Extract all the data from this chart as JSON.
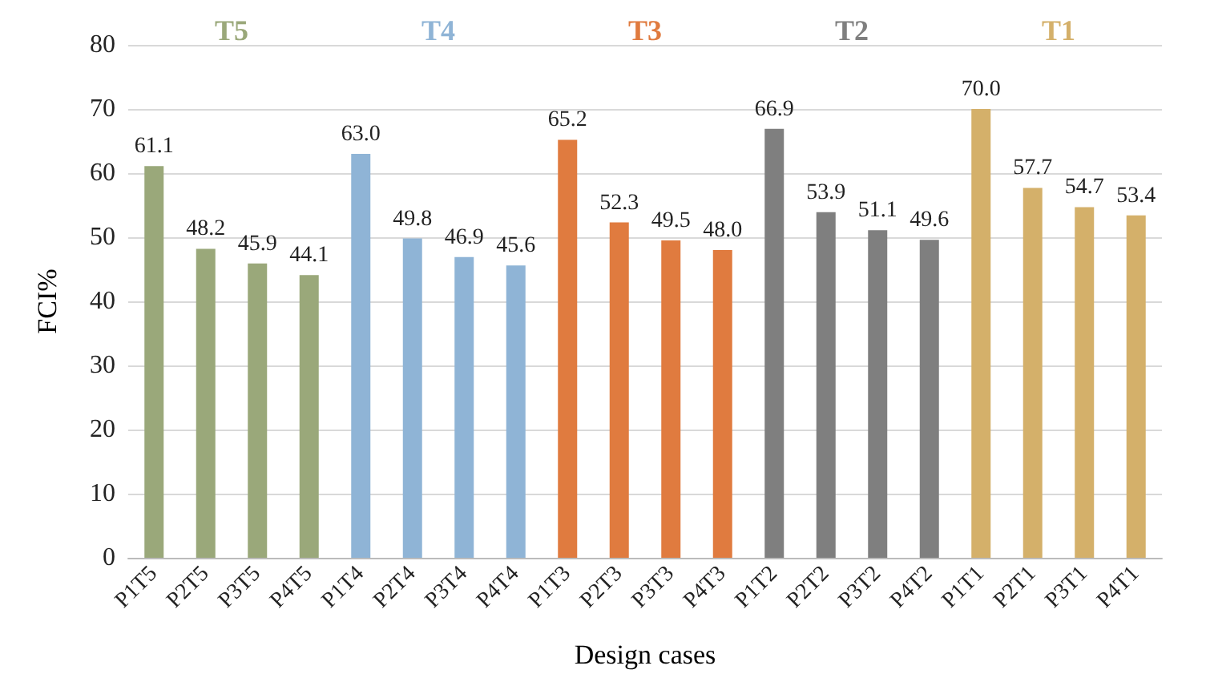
{
  "chart_data": {
    "type": "bar",
    "categories": [
      "P1T5",
      "P2T5",
      "P3T5",
      "P4T5",
      "P1T4",
      "P2T4",
      "P3T4",
      "P4T4",
      "P1T3",
      "P2T3",
      "P3T3",
      "P4T3",
      "P1T2",
      "P2T2",
      "P3T2",
      "P4T2",
      "P1T1",
      "P2T1",
      "P3T1",
      "P4T1"
    ],
    "values": [
      61.1,
      48.2,
      45.9,
      44.1,
      63.0,
      49.8,
      46.9,
      45.6,
      65.2,
      52.3,
      49.5,
      48.0,
      66.9,
      53.9,
      51.1,
      49.6,
      70.0,
      57.7,
      54.7,
      53.4
    ],
    "colors": [
      "#9aa87a",
      "#9aa87a",
      "#9aa87a",
      "#9aa87a",
      "#8fb4d6",
      "#8fb4d6",
      "#8fb4d6",
      "#8fb4d6",
      "#e07b3f",
      "#e07b3f",
      "#e07b3f",
      "#e07b3f",
      "#7f7f7f",
      "#7f7f7f",
      "#7f7f7f",
      "#7f7f7f",
      "#d4b06a",
      "#d4b06a",
      "#d4b06a",
      "#d4b06a"
    ],
    "value_labels": [
      "61.1",
      "48.2",
      "45.9",
      "44.1",
      "63.0",
      "49.8",
      "46.9",
      "45.6",
      "65.2",
      "52.3",
      "49.5",
      "48.0",
      "66.9",
      "53.9",
      "51.1",
      "49.6",
      "70.0",
      "57.7",
      "54.7",
      "53.4"
    ],
    "xlabel": "Design cases",
    "ylabel": "FCI%",
    "ylim": [
      0,
      80
    ],
    "yticks": [
      0,
      10,
      20,
      30,
      40,
      50,
      60,
      70,
      80
    ],
    "grid": "y",
    "annotations": [
      "T5",
      "T4",
      "T3",
      "T2",
      "T1"
    ]
  }
}
